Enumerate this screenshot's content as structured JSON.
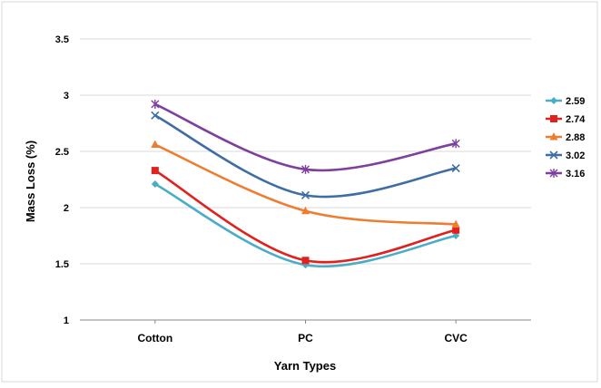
{
  "chart_data": {
    "type": "line",
    "title": "",
    "xlabel": "Yarn Types",
    "ylabel": "Mass Loss (%)",
    "categories": [
      "Cotton",
      "PC",
      "CVC"
    ],
    "ylim": [
      1,
      3.5
    ],
    "yticks": [
      "1",
      "1.5",
      "2",
      "2.5",
      "3",
      "3.5"
    ],
    "grid": "horizontal",
    "legend_position": "right",
    "smooth": true,
    "series": [
      {
        "name": "2.59",
        "values": [
          2.21,
          1.49,
          1.75
        ],
        "color": "#4BACC6",
        "marker": "diamond"
      },
      {
        "name": "2.74",
        "values": [
          2.33,
          1.53,
          1.8
        ],
        "color": "#E0221E",
        "marker": "square"
      },
      {
        "name": "2.88",
        "values": [
          2.56,
          1.97,
          1.85
        ],
        "color": "#ED7D31",
        "marker": "triangle"
      },
      {
        "name": "3.02",
        "values": [
          2.82,
          2.11,
          2.35
        ],
        "color": "#3F6DA4",
        "marker": "x"
      },
      {
        "name": "3.16",
        "values": [
          2.92,
          2.34,
          2.57
        ],
        "color": "#7E3F9E",
        "marker": "star"
      }
    ]
  }
}
